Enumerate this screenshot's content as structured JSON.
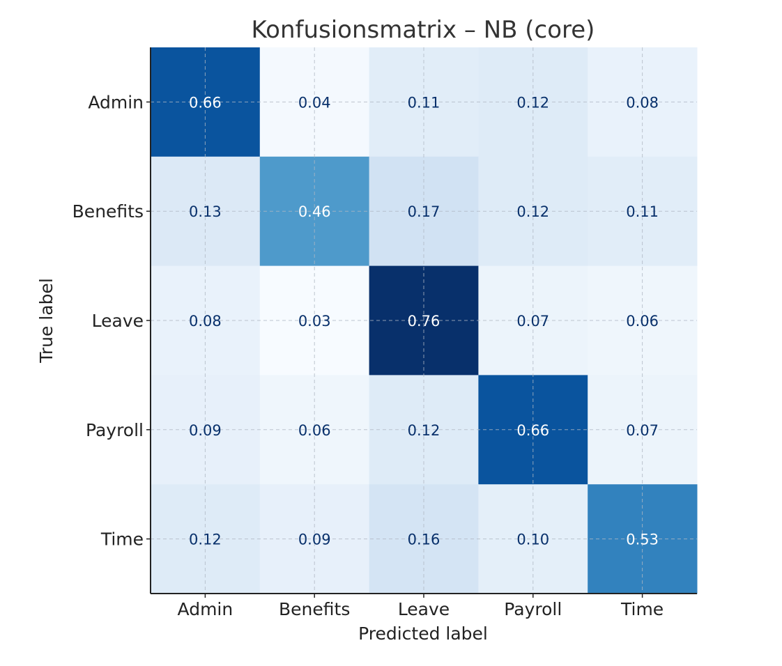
{
  "chart_data": {
    "type": "heatmap",
    "title": "Konfusionsmatrix – NB (core)",
    "xlabel": "Predicted label",
    "ylabel": "True label",
    "x_categories": [
      "Admin",
      "Benefits",
      "Leave",
      "Payroll",
      "Time"
    ],
    "y_categories": [
      "Admin",
      "Benefits",
      "Leave",
      "Payroll",
      "Time"
    ],
    "values": [
      [
        0.66,
        0.04,
        0.11,
        0.12,
        0.08
      ],
      [
        0.13,
        0.46,
        0.17,
        0.12,
        0.11
      ],
      [
        0.08,
        0.03,
        0.76,
        0.07,
        0.06
      ],
      [
        0.09,
        0.06,
        0.12,
        0.66,
        0.07
      ],
      [
        0.12,
        0.09,
        0.16,
        0.1,
        0.53
      ]
    ],
    "value_labels": [
      [
        "0.66",
        "0.04",
        "0.11",
        "0.12",
        "0.08"
      ],
      [
        "0.13",
        "0.46",
        "0.17",
        "0.12",
        "0.11"
      ],
      [
        "0.08",
        "0.03",
        "0.76",
        "0.07",
        "0.06"
      ],
      [
        "0.09",
        "0.06",
        "0.12",
        "0.66",
        "0.07"
      ],
      [
        "0.12",
        "0.09",
        "0.16",
        "0.10",
        "0.53"
      ]
    ],
    "colormap": "Blues",
    "value_range": [
      0.03,
      0.76
    ],
    "grid": true
  },
  "colors": {
    "text_dark": "#08306b",
    "text_light": "#ffffff",
    "grid": "#b0b8c4",
    "axis": "#222222"
  }
}
